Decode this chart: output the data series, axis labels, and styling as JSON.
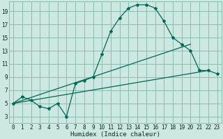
{
  "xlabel": "Humidex (Indice chaleur)",
  "bg_color": "#cce8e0",
  "grid_color": "#8cbcb0",
  "line_color": "#006858",
  "xlim": [
    -0.5,
    23.5
  ],
  "ylim": [
    2.0,
    20.5
  ],
  "yticks": [
    3,
    5,
    7,
    9,
    11,
    13,
    15,
    17,
    19
  ],
  "xticks": [
    0,
    1,
    2,
    3,
    4,
    5,
    6,
    7,
    8,
    9,
    10,
    11,
    12,
    13,
    14,
    15,
    16,
    17,
    18,
    19,
    20,
    21,
    22,
    23
  ],
  "curve1_x": [
    0,
    1,
    2,
    3,
    4,
    5,
    6,
    7,
    8,
    9,
    10,
    11,
    12,
    13,
    14,
    15,
    16,
    17,
    18,
    19,
    20,
    21,
    22,
    23
  ],
  "curve1_y": [
    5.0,
    6.0,
    5.5,
    4.5,
    4.2,
    5.0,
    3.0,
    8.0,
    8.5,
    9.0,
    12.5,
    16.0,
    18.0,
    19.5,
    20.0,
    20.0,
    19.5,
    17.5,
    15.0,
    14.0,
    13.0,
    10.0,
    10.0,
    9.5
  ],
  "trend1_x": [
    0,
    22
  ],
  "trend1_y": [
    5.0,
    10.0
  ],
  "trend2_x": [
    0,
    20
  ],
  "trend2_y": [
    5.0,
    14.0
  ],
  "marker_size": 3.0
}
